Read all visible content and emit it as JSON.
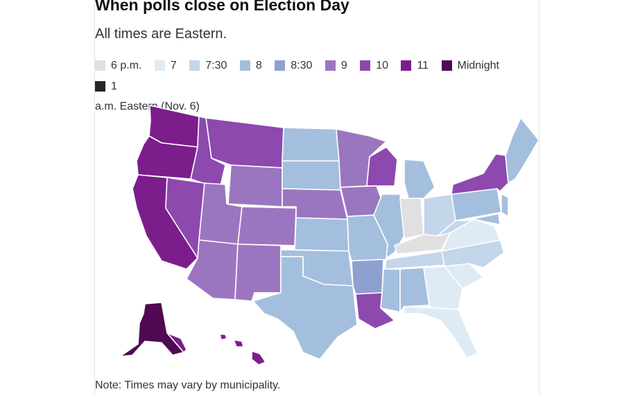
{
  "title": "When polls close on Election Day",
  "subtitle": "All times are Eastern.",
  "legend": [
    {
      "label": "6 p.m.",
      "color": "#e0e0e0"
    },
    {
      "label": "7",
      "color": "#deebf5"
    },
    {
      "label": "7:30",
      "color": "#c3d6ea"
    },
    {
      "label": "8",
      "color": "#a4bfdd"
    },
    {
      "label": "8:30",
      "color": "#8f9fd0"
    },
    {
      "label": "9",
      "color": "#9b76c0"
    },
    {
      "label": "10",
      "color": "#8d49ae"
    },
    {
      "label": "11",
      "color": "#7c1d8c"
    },
    {
      "label": "Midnight",
      "color": "#4f0a52"
    },
    {
      "label": "1",
      "color": "#262626"
    }
  ],
  "legend_continuation": "a.m. Eastern (Nov. 6)",
  "note": "Note: Times may vary by municipality."
}
